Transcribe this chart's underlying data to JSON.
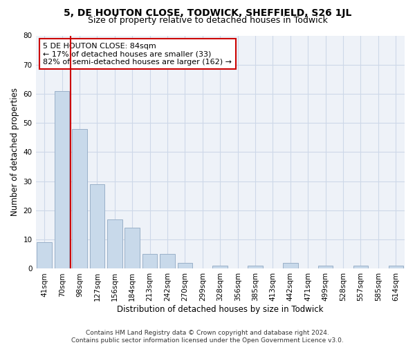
{
  "title": "5, DE HOUTON CLOSE, TODWICK, SHEFFIELD, S26 1JL",
  "subtitle": "Size of property relative to detached houses in Todwick",
  "xlabel": "Distribution of detached houses by size in Todwick",
  "ylabel": "Number of detached properties",
  "categories": [
    "41sqm",
    "70sqm",
    "98sqm",
    "127sqm",
    "156sqm",
    "184sqm",
    "213sqm",
    "242sqm",
    "270sqm",
    "299sqm",
    "328sqm",
    "356sqm",
    "385sqm",
    "413sqm",
    "442sqm",
    "471sqm",
    "499sqm",
    "528sqm",
    "557sqm",
    "585sqm",
    "614sqm"
  ],
  "values": [
    9,
    61,
    48,
    29,
    17,
    14,
    5,
    5,
    2,
    0,
    1,
    0,
    1,
    0,
    2,
    0,
    1,
    0,
    1,
    0,
    1
  ],
  "bar_color": "#c8d9ea",
  "bar_edge_color": "#9ab0c8",
  "vline_color": "#cc0000",
  "vline_pos": 1.5,
  "annotation_text": "5 DE HOUTON CLOSE: 84sqm\n← 17% of detached houses are smaller (33)\n82% of semi-detached houses are larger (162) →",
  "annotation_box_facecolor": "#ffffff",
  "annotation_box_edgecolor": "#cc0000",
  "ylim": [
    0,
    80
  ],
  "yticks": [
    0,
    10,
    20,
    30,
    40,
    50,
    60,
    70,
    80
  ],
  "grid_color": "#cdd8e8",
  "background_color": "#eef2f8",
  "footer": "Contains HM Land Registry data © Crown copyright and database right 2024.\nContains public sector information licensed under the Open Government Licence v3.0.",
  "title_fontsize": 10,
  "subtitle_fontsize": 9,
  "xlabel_fontsize": 8.5,
  "ylabel_fontsize": 8.5,
  "tick_fontsize": 7.5,
  "annotation_fontsize": 8,
  "footer_fontsize": 6.5
}
